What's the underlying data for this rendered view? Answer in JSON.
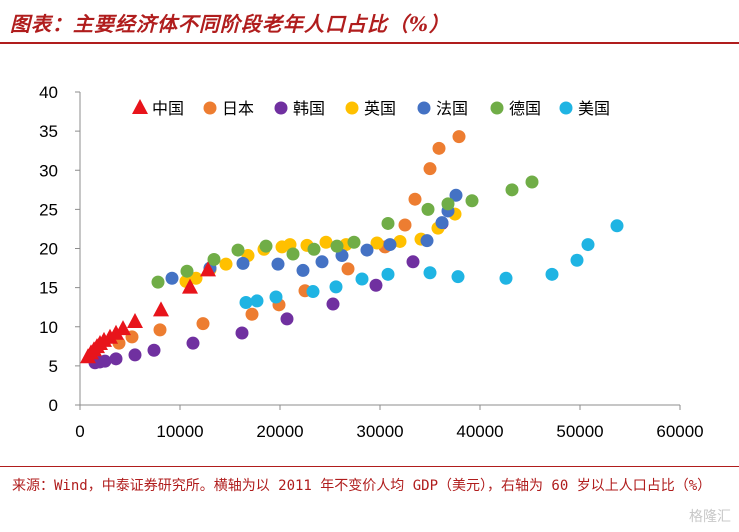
{
  "header": {
    "title": "图表：主要经济体不同阶段老年人口占比（%）"
  },
  "footer": {
    "source": "来源：Wind，中泰证券研究所。横轴为以 2011 年不变价人均 GDP（美元），右轴为 60 岁以上人口占比（%）",
    "watermark": "格隆汇"
  },
  "chart_data": {
    "type": "scatter",
    "title": "主要经济体不同阶段老年人口占比（%）",
    "xlabel": "",
    "ylabel": "",
    "xlim": [
      0,
      60000
    ],
    "ylim": [
      0,
      40
    ],
    "x_ticks": [
      0,
      10000,
      20000,
      30000,
      40000,
      50000,
      60000
    ],
    "y_ticks": [
      0,
      5,
      10,
      15,
      20,
      25,
      30,
      35,
      40
    ],
    "legend_position": "top",
    "grid": false,
    "series": [
      {
        "name": "中国",
        "color": "#e8141b",
        "marker": "triangle",
        "points": [
          [
            800,
            6.1
          ],
          [
            1100,
            6.6
          ],
          [
            1400,
            7.0
          ],
          [
            1700,
            7.4
          ],
          [
            2000,
            7.8
          ],
          [
            2400,
            8.2
          ],
          [
            3000,
            8.6
          ],
          [
            3600,
            9.1
          ],
          [
            4300,
            9.7
          ],
          [
            5500,
            10.6
          ],
          [
            8100,
            12.1
          ],
          [
            11000,
            15.0
          ],
          [
            12800,
            17.2
          ]
        ]
      },
      {
        "name": "日本",
        "color": "#ed7d31",
        "marker": "circle",
        "points": [
          [
            3900,
            7.9
          ],
          [
            5200,
            8.7
          ],
          [
            8000,
            9.6
          ],
          [
            12300,
            10.4
          ],
          [
            17200,
            11.6
          ],
          [
            19900,
            12.8
          ],
          [
            22500,
            14.6
          ],
          [
            26800,
            17.4
          ],
          [
            30500,
            20.2
          ],
          [
            32500,
            23.0
          ],
          [
            33500,
            26.3
          ],
          [
            35000,
            30.2
          ],
          [
            35900,
            32.8
          ],
          [
            37900,
            34.3
          ]
        ]
      },
      {
        "name": "韩国",
        "color": "#7030a0",
        "marker": "circle",
        "points": [
          [
            1500,
            5.4
          ],
          [
            2000,
            5.5
          ],
          [
            2500,
            5.6
          ],
          [
            3600,
            5.9
          ],
          [
            5500,
            6.4
          ],
          [
            7400,
            7.0
          ],
          [
            11300,
            7.9
          ],
          [
            16200,
            9.2
          ],
          [
            20700,
            11.0
          ],
          [
            25300,
            12.9
          ],
          [
            29600,
            15.3
          ],
          [
            33300,
            18.3
          ],
          [
            36200,
            23.2
          ]
        ]
      },
      {
        "name": "英国",
        "color": "#ffc000",
        "marker": "circle",
        "points": [
          [
            10600,
            15.8
          ],
          [
            11600,
            16.2
          ],
          [
            13000,
            17.3
          ],
          [
            14600,
            18.0
          ],
          [
            16800,
            19.1
          ],
          [
            18400,
            19.9
          ],
          [
            20200,
            20.2
          ],
          [
            21000,
            20.5
          ],
          [
            22700,
            20.4
          ],
          [
            24600,
            20.8
          ],
          [
            26600,
            20.5
          ],
          [
            29700,
            20.7
          ],
          [
            32000,
            20.9
          ],
          [
            34100,
            21.2
          ],
          [
            35800,
            22.6
          ],
          [
            37500,
            24.4
          ]
        ]
      },
      {
        "name": "法国",
        "color": "#4472c4",
        "marker": "circle",
        "points": [
          [
            9200,
            16.2
          ],
          [
            13000,
            17.5
          ],
          [
            16300,
            18.1
          ],
          [
            19800,
            18.0
          ],
          [
            22300,
            17.2
          ],
          [
            24200,
            18.3
          ],
          [
            26200,
            19.1
          ],
          [
            28700,
            19.8
          ],
          [
            31000,
            20.5
          ],
          [
            34700,
            21.0
          ],
          [
            36200,
            23.3
          ],
          [
            36800,
            24.8
          ],
          [
            37600,
            26.8
          ]
        ]
      },
      {
        "name": "德国",
        "color": "#70ad47",
        "marker": "circle",
        "points": [
          [
            7800,
            15.7
          ],
          [
            10700,
            17.1
          ],
          [
            13400,
            18.6
          ],
          [
            15800,
            19.8
          ],
          [
            18600,
            20.3
          ],
          [
            21300,
            19.3
          ],
          [
            23400,
            19.9
          ],
          [
            25700,
            20.3
          ],
          [
            27400,
            20.8
          ],
          [
            30800,
            23.2
          ],
          [
            34800,
            25.0
          ],
          [
            36800,
            25.7
          ],
          [
            39200,
            26.1
          ],
          [
            43200,
            27.5
          ],
          [
            45200,
            28.5
          ]
        ]
      },
      {
        "name": "美国",
        "color": "#1fb4e3",
        "marker": "circle",
        "points": [
          [
            16600,
            13.1
          ],
          [
            17700,
            13.3
          ],
          [
            19600,
            13.8
          ],
          [
            23300,
            14.5
          ],
          [
            25600,
            15.1
          ],
          [
            28200,
            16.1
          ],
          [
            30800,
            16.7
          ],
          [
            35000,
            16.9
          ],
          [
            37800,
            16.4
          ],
          [
            42600,
            16.2
          ],
          [
            47200,
            16.7
          ],
          [
            49700,
            18.5
          ],
          [
            50800,
            20.5
          ],
          [
            53700,
            22.9
          ]
        ]
      }
    ]
  }
}
